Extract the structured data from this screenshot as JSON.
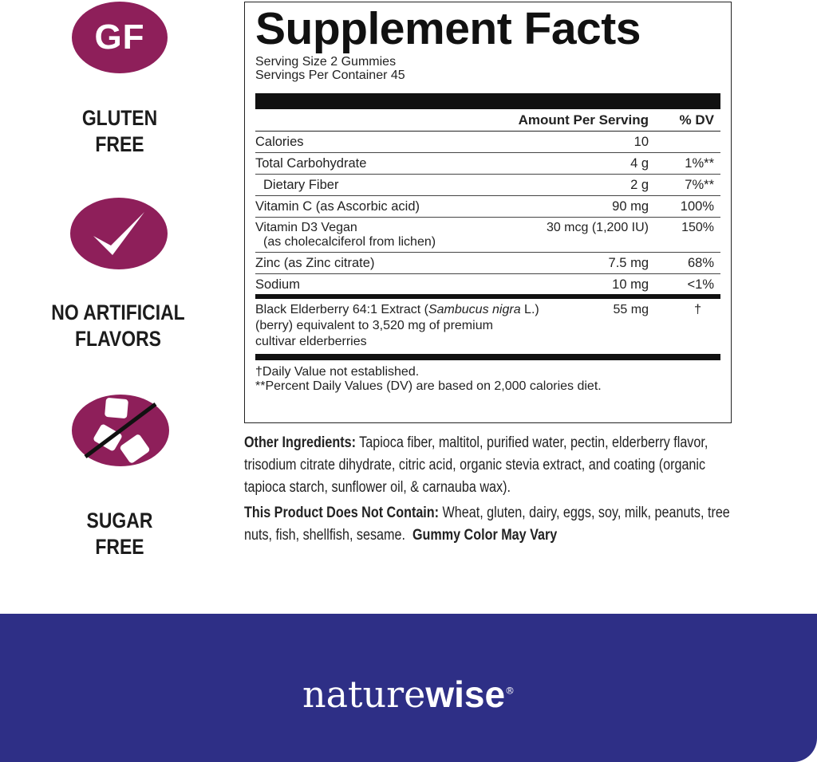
{
  "badges": [
    {
      "icon": "gf-icon",
      "icon_text": "GF",
      "label1": "GLUTEN",
      "label2": "FREE"
    },
    {
      "icon": "checkmark-icon",
      "label1": "NO ARTIFICIAL",
      "label2": "FLAVORS"
    },
    {
      "icon": "no-sugar-icon",
      "label1": "SUGAR",
      "label2": "FREE"
    }
  ],
  "facts": {
    "title": "Supplement Facts",
    "serving_size": "Serving Size 2 Gummies",
    "servings_per_container": "Servings Per Container 45",
    "header_amount": "Amount Per Serving",
    "header_dv": "% DV",
    "rows": [
      {
        "name": "Calories",
        "amount": "10",
        "dv": ""
      },
      {
        "name": "Total Carbohydrate",
        "amount": "4 g",
        "dv": "1%**"
      },
      {
        "name": "Dietary Fiber",
        "amount": "2 g",
        "dv": "7%**"
      },
      {
        "name": "Vitamin C (as Ascorbic acid)",
        "amount": "90 mg",
        "dv": "100%"
      },
      {
        "name": "Vitamin D3 Vegan",
        "sub": "(as cholecalciferol from lichen)",
        "amount": "30 mcg (1,200 IU)",
        "dv": "150%"
      },
      {
        "name": "Zinc (as Zinc citrate)",
        "amount": "7.5 mg",
        "dv": "68%"
      },
      {
        "name": "Sodium",
        "amount": "10 mg",
        "dv": "<1%"
      }
    ],
    "elderberry": {
      "name_a": "Black Elderberry 64:1 Extract (",
      "name_italic": "Sambucus nigra",
      "name_b": " L.)",
      "line2": "(berry) equivalent to 3,520 mg of premium",
      "line3": "cultivar elderberries",
      "amount": "55 mg",
      "dv": "†"
    },
    "footnote1": "†Daily Value not established.",
    "footnote2": "**Percent Daily Values (DV) are based on 2,000 calories diet."
  },
  "ingredients": {
    "other_label": "Other Ingredients:",
    "other_text": " Tapioca fiber, maltitol, purified water, pectin, elderberry flavor, trisodium citrate dihydrate, citric acid, organic stevia extract, and coating (organic tapioca starch, sunflower oil, & carnauba wax).",
    "not_contain_label": "This Product Does Not Contain:",
    "not_contain_text": " Wheat, gluten, dairy, eggs, soy, milk, peanuts, tree nuts, fish, shellfish, sesame.",
    "gummy_note": "Gummy Color May Vary"
  },
  "brand": {
    "part1": "nature",
    "part2": "wise",
    "reg": "®"
  },
  "colors": {
    "badge": "#8e1f5a",
    "banner": "#2e2f86"
  }
}
